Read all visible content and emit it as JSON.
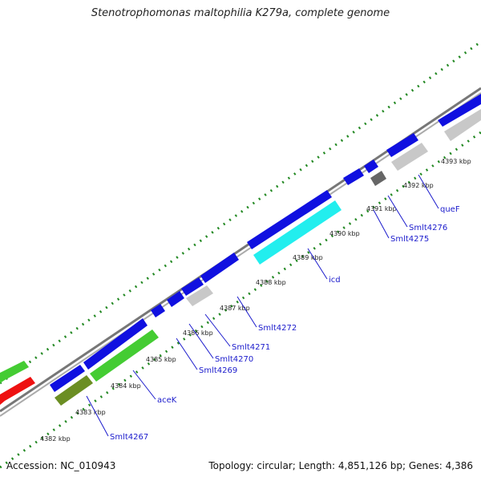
{
  "title": "Stenotrophomonas maltophilia K279a, complete genome",
  "accession": "Accession: NC_010943",
  "summary": "Topology: circular; Length: 4,851,126 bp; Genes: 4,386",
  "colors": {
    "forward_cds": "#1010e0",
    "reverse_blue": "#1010e0",
    "green": "#44cc33",
    "red": "#ee1111",
    "olive": "#6b8e23",
    "cyan": "#22eeee",
    "gray": "#c8c8c8",
    "dark_gray": "#666666",
    "backbone": "#888888",
    "tick_dots": "#228822"
  },
  "ticks": [
    {
      "label": "4382 kbp"
    },
    {
      "label": "4383 kbp"
    },
    {
      "label": "4384 kbp"
    },
    {
      "label": "4385 kbp"
    },
    {
      "label": "4386 kbp"
    },
    {
      "label": "4387 kbp"
    },
    {
      "label": "4388 kbp"
    },
    {
      "label": "4389 kbp"
    },
    {
      "label": "4390 kbp"
    },
    {
      "label": "4391 kbp"
    },
    {
      "label": "4392 kbp"
    },
    {
      "label": "4393 kbp"
    }
  ],
  "gene_labels": [
    {
      "name": "Smlt4267"
    },
    {
      "name": "aceK"
    },
    {
      "name": "Smlt4269"
    },
    {
      "name": "Smlt4270"
    },
    {
      "name": "Smlt4271"
    },
    {
      "name": "Smlt4272"
    },
    {
      "name": "icd"
    },
    {
      "name": "Smlt4275"
    },
    {
      "name": "Smlt4276"
    },
    {
      "name": "queF"
    }
  ]
}
